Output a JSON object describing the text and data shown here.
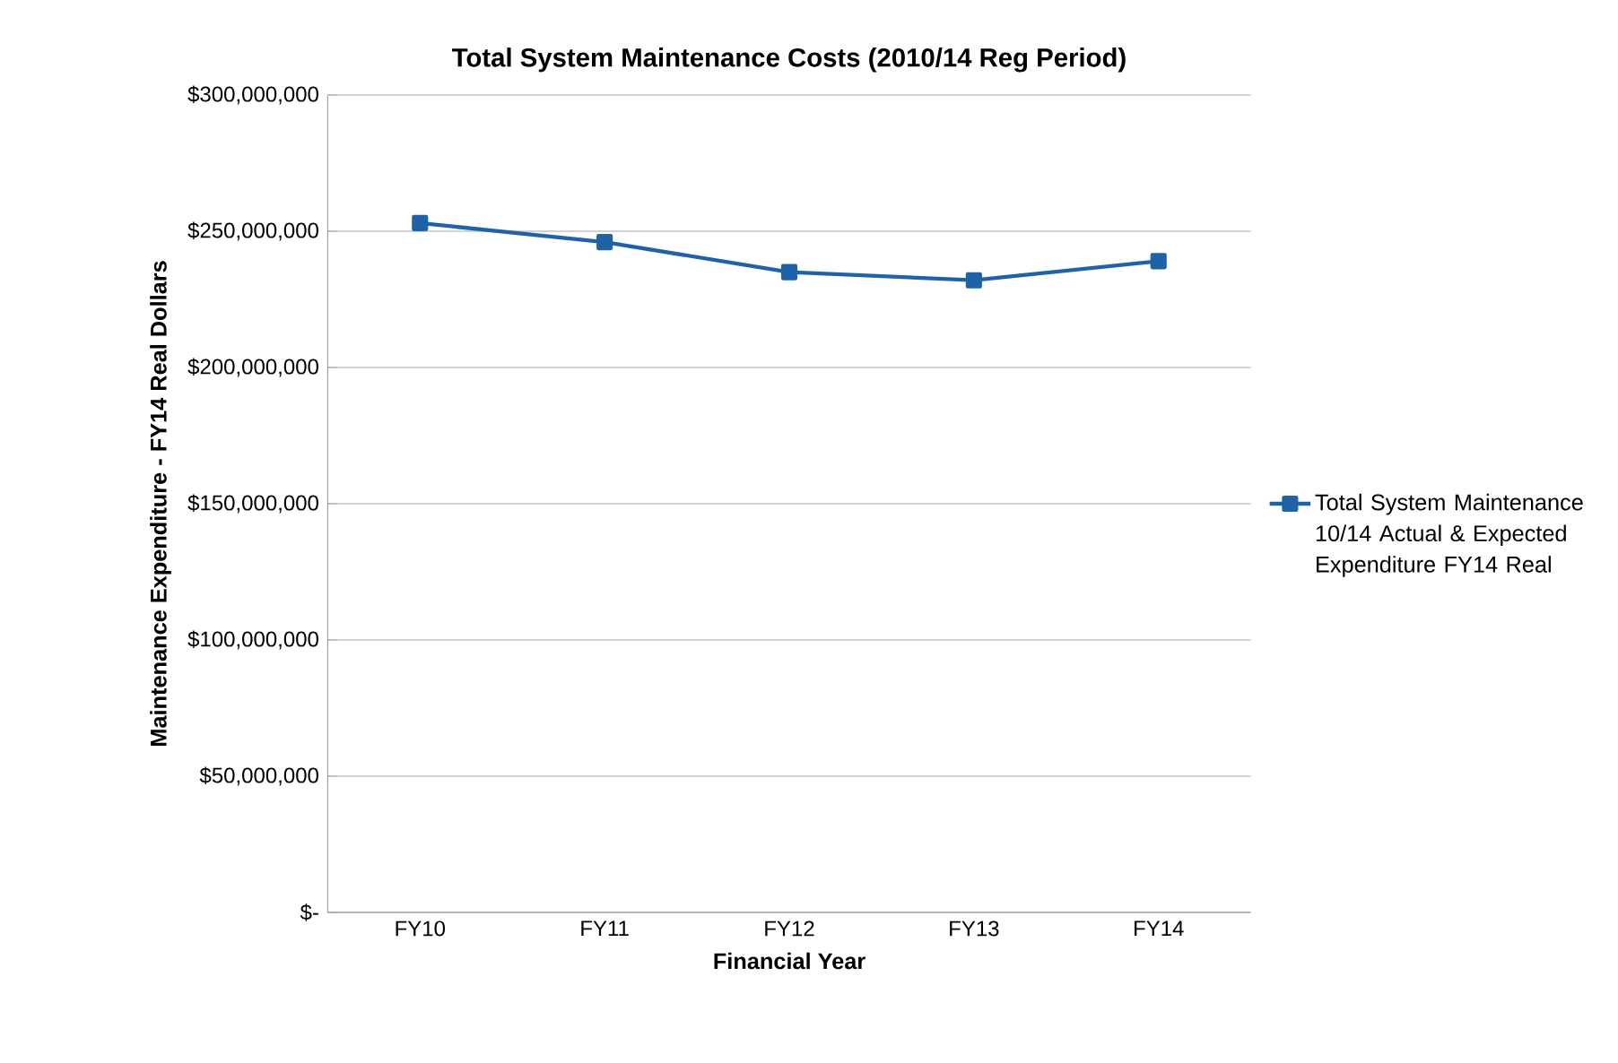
{
  "chart_data": {
    "type": "line",
    "title": "Total System Maintenance Costs (2010/14 Reg Period)",
    "xlabel": "Financial Year",
    "ylabel": "Maintenance Expenditure  - FY14 Real Dollars",
    "categories": [
      "FY10",
      "FY11",
      "FY12",
      "FY13",
      "FY14"
    ],
    "series": [
      {
        "name": "Total System Maintenance 10/14 Actual & Expected Expenditure  FY14 Real",
        "color": "#1f63a6",
        "values": [
          253000000,
          246000000,
          235000000,
          232000000,
          239000000
        ]
      }
    ],
    "ylim": [
      0,
      300000000
    ],
    "yticks": [
      {
        "value": 0,
        "label": "$-"
      },
      {
        "value": 50000000,
        "label": "$50,000,000"
      },
      {
        "value": 100000000,
        "label": "$100,000,000"
      },
      {
        "value": 150000000,
        "label": "$150,000,000"
      },
      {
        "value": 200000000,
        "label": "$200,000,000"
      },
      {
        "value": 250000000,
        "label": "$250,000,000"
      },
      {
        "value": 300000000,
        "label": "$300,000,000"
      }
    ],
    "grid": "y",
    "legend": "right",
    "marker": "square",
    "line_style": "solid"
  }
}
